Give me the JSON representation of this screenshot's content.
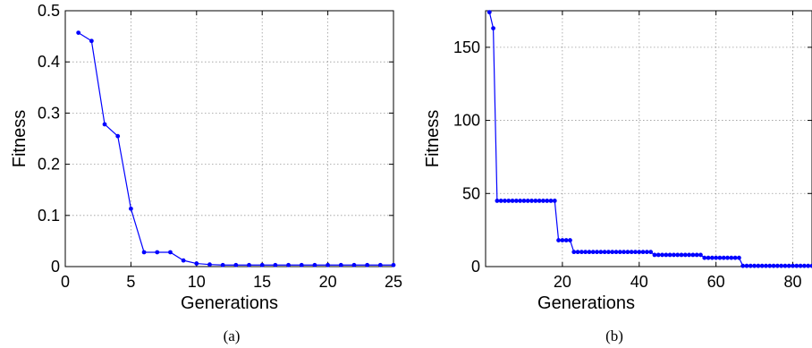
{
  "chart_data": [
    {
      "type": "line",
      "caption": "(a)",
      "xlabel": "Generations",
      "ylabel": "Fitness",
      "xlim": [
        0,
        25
      ],
      "ylim": [
        0,
        0.5
      ],
      "xticks": [
        0,
        5,
        10,
        15,
        20,
        25
      ],
      "yticks": [
        0,
        0.1,
        0.2,
        0.3,
        0.4,
        0.5
      ],
      "xtick_labels": [
        "0",
        "5",
        "10",
        "15",
        "20",
        "25"
      ],
      "ytick_labels": [
        "0",
        "0.1",
        "0.2",
        "0.3",
        "0.4",
        "0.5"
      ],
      "grid": true,
      "series_color": "#0000ff",
      "x": [
        1,
        2,
        3,
        4,
        5,
        6,
        7,
        8,
        9,
        10,
        11,
        12,
        13,
        14,
        15,
        16,
        17,
        18,
        19,
        20,
        21,
        22,
        23,
        24,
        25
      ],
      "y": [
        0.457,
        0.441,
        0.278,
        0.255,
        0.113,
        0.028,
        0.028,
        0.028,
        0.012,
        0.006,
        0.004,
        0.003,
        0.003,
        0.003,
        0.003,
        0.003,
        0.003,
        0.003,
        0.003,
        0.003,
        0.003,
        0.003,
        0.003,
        0.003,
        0.003
      ]
    },
    {
      "type": "line",
      "caption": "(b)",
      "xlabel": "Generations",
      "ylabel": "Fitness",
      "xlim": [
        0,
        85
      ],
      "ylim": [
        0,
        175
      ],
      "xticks": [
        20,
        40,
        60,
        80
      ],
      "yticks": [
        0,
        50,
        100,
        150
      ],
      "xtick_labels": [
        "20",
        "40",
        "60",
        "80"
      ],
      "ytick_labels": [
        "0",
        "50",
        "100",
        "150"
      ],
      "grid": true,
      "series_color": "#0000ff",
      "segments": [
        {
          "from": 1,
          "to": 1,
          "value": 174
        },
        {
          "from": 2,
          "to": 2,
          "value": 163
        },
        {
          "from": 3,
          "to": 18,
          "value": 45
        },
        {
          "from": 19,
          "to": 22,
          "value": 18
        },
        {
          "from": 23,
          "to": 43,
          "value": 10
        },
        {
          "from": 44,
          "to": 56,
          "value": 8
        },
        {
          "from": 57,
          "to": 66,
          "value": 6
        },
        {
          "from": 67,
          "to": 85,
          "value": 0.5
        }
      ]
    }
  ]
}
